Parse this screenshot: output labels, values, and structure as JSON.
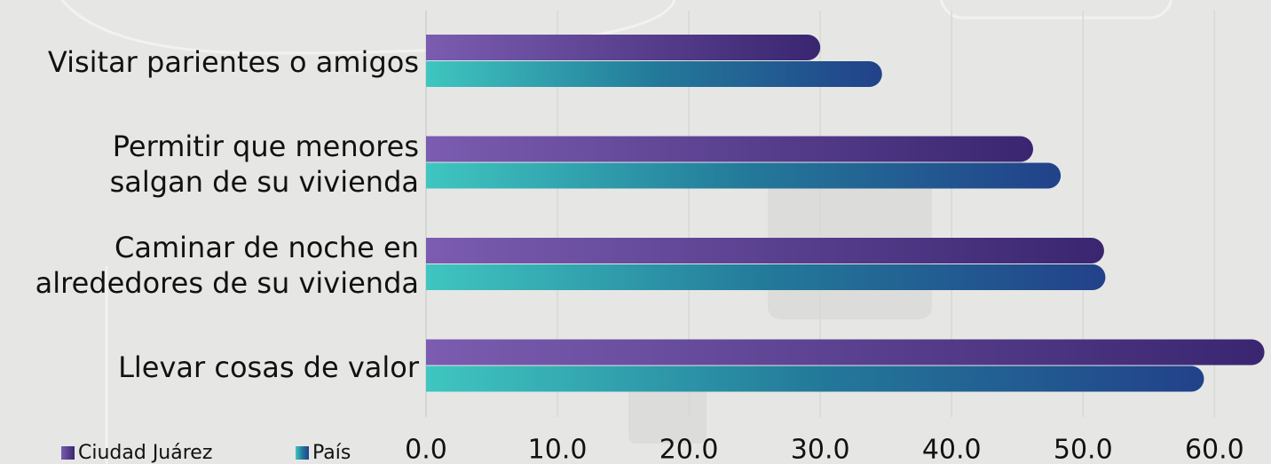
{
  "chart_data": {
    "type": "barh",
    "categories": [
      "Visitar parientes o amigos",
      "Permitir que menores\nsalgan de su vivienda",
      "Caminar de noche en\nalrededores de su vivienda",
      "Llevar cosas de valor"
    ],
    "series": [
      {
        "name": "Ciudad Juárez",
        "color": "#7b5cb0",
        "values": [
          30.0,
          46.2,
          51.6,
          63.8
        ]
      },
      {
        "name": "País",
        "color": "#3fc6c0",
        "values": [
          34.7,
          48.3,
          51.7,
          59.2
        ]
      }
    ],
    "xlim": [
      0,
      64.3
    ],
    "xticks": [
      {
        "value": 0,
        "label": "0.0"
      },
      {
        "value": 10,
        "label": "10.0"
      },
      {
        "value": 20,
        "label": "20.0"
      },
      {
        "value": 30,
        "label": "30.0"
      },
      {
        "value": 40,
        "label": "40.0"
      },
      {
        "value": 50,
        "label": "50.0"
      },
      {
        "value": 60,
        "label": "60.0"
      }
    ],
    "grid": true,
    "legend": "bottom-left"
  }
}
